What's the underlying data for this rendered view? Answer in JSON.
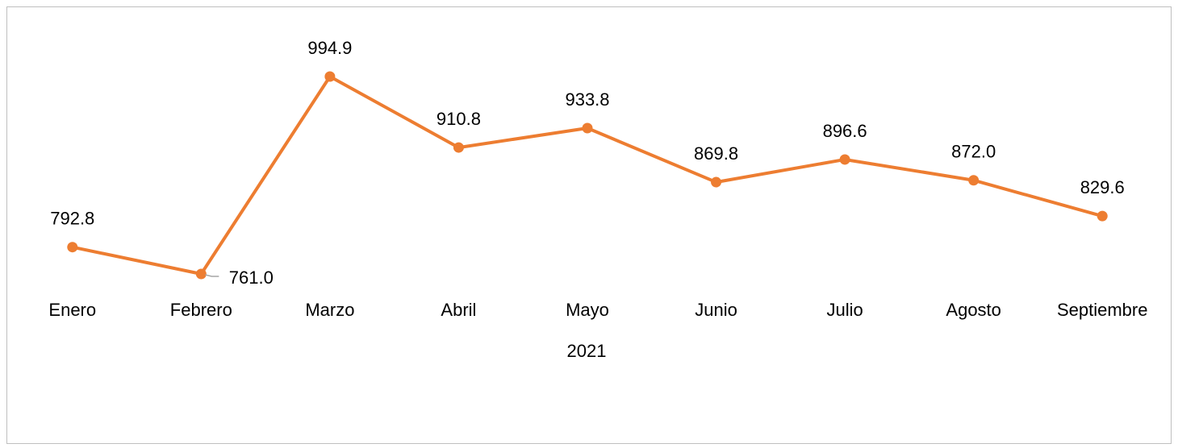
{
  "chart_data": {
    "type": "line",
    "categories": [
      "Enero",
      "Febrero",
      "Marzo",
      "Abril",
      "Mayo",
      "Junio",
      "Julio",
      "Agosto",
      "Septiembre"
    ],
    "xlabel": "2021",
    "series": [
      {
        "name": "2021",
        "color": "#ed7d31",
        "values": [
          792.8,
          761.0,
          994.9,
          910.8,
          933.8,
          869.8,
          896.6,
          872.0,
          829.6
        ],
        "value_labels": [
          "792.8",
          "761.0",
          "994.9",
          "910.8",
          "933.8",
          "869.8",
          "896.6",
          "872.0",
          "829.6"
        ]
      }
    ]
  }
}
